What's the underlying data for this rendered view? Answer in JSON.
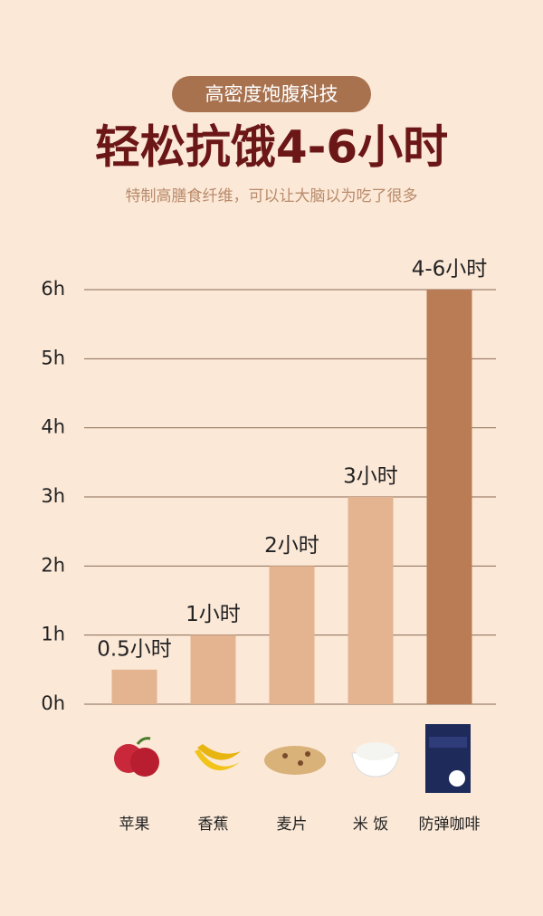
{
  "chart_data": {
    "type": "bar",
    "badge": "高密度饱腹科技",
    "title": "轻松抗饿4-6小时",
    "subtitle": "特制高膳食纤维，可以让大脑以为吃了很多",
    "categories": [
      "苹果",
      "香蕉",
      "麦片",
      "米 饭",
      "防弹咖啡"
    ],
    "values": [
      0.5,
      1,
      2,
      3,
      6
    ],
    "value_labels": [
      "0.5小时",
      "1小时",
      "2小时",
      "3小时",
      "4-6小时"
    ],
    "colors": [
      "#e3b48f",
      "#e3b48f",
      "#e3b48f",
      "#e3b48f",
      "#b97c55"
    ],
    "ylim": [
      0,
      6
    ],
    "yticks": [
      {
        "value": 0,
        "label": "0h"
      },
      {
        "value": 1,
        "label": "1h"
      },
      {
        "value": 2,
        "label": "2h"
      },
      {
        "value": 3,
        "label": "3h"
      },
      {
        "value": 4,
        "label": "4h"
      },
      {
        "value": 5,
        "label": "5h"
      },
      {
        "value": 6,
        "label": "6h"
      }
    ],
    "grid": true
  }
}
